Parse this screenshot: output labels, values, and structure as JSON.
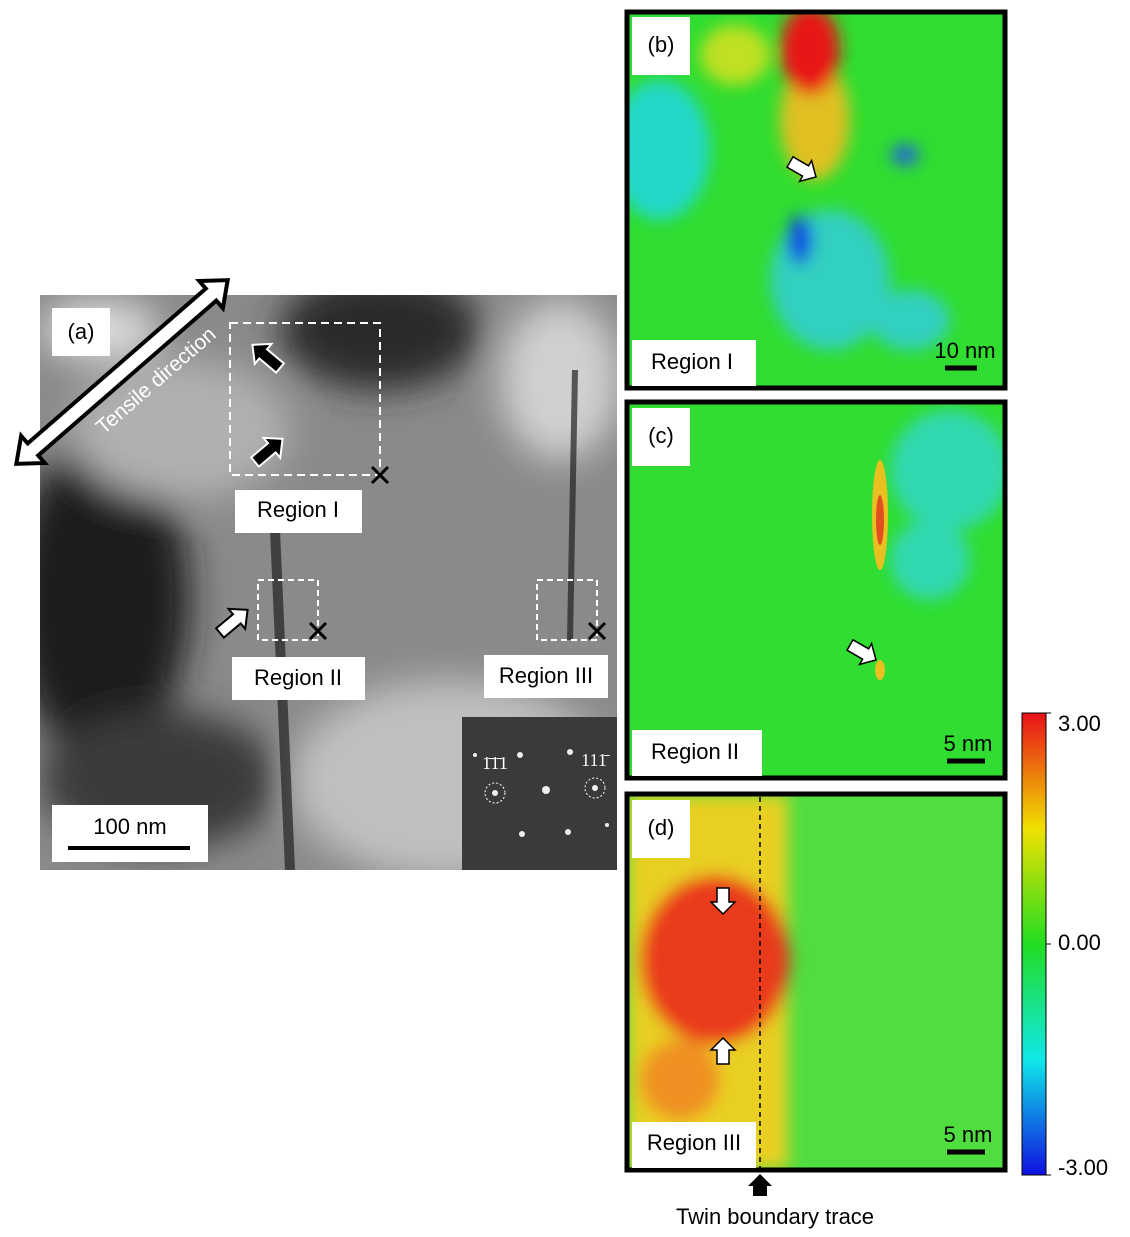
{
  "panel_a": {
    "label": "(a)",
    "tensile": "Tensile direction",
    "regions": [
      "Region I",
      "Region II",
      "Region III"
    ],
    "scale": "100 nm",
    "spots": [
      "1̄1̄1",
      "111̄"
    ]
  },
  "panel_b": {
    "label": "(b)",
    "region": "Region I",
    "scale": "10 nm"
  },
  "panel_c": {
    "label": "(c)",
    "region": "Region II",
    "scale": "5 nm"
  },
  "panel_d": {
    "label": "(d)",
    "region": "Region III",
    "scale": "5 nm",
    "trace": "Twin boundary trace"
  },
  "colorbar": {
    "min": -3,
    "max": 3,
    "ticks": [
      {
        "value": 3,
        "label": "3.00"
      },
      {
        "value": 0,
        "label": "0.00"
      },
      {
        "value": -3,
        "label": "-3.00"
      }
    ]
  }
}
